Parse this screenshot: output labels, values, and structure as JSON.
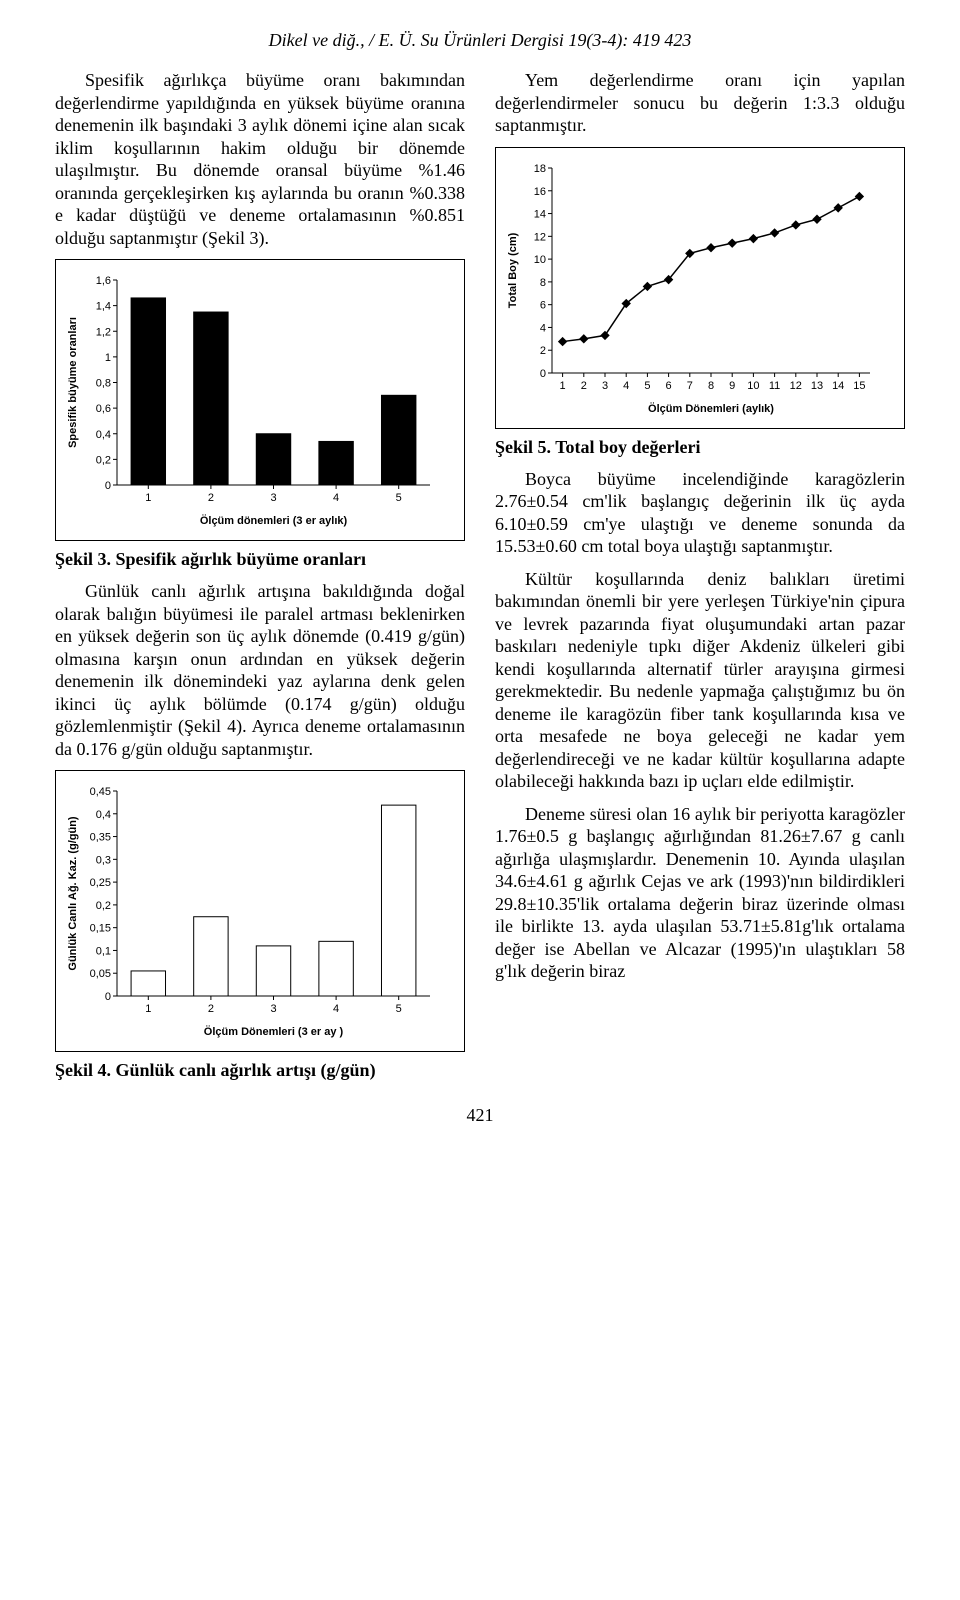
{
  "header": "Dikel ve diğ., / E. Ü. Su Ürünleri Dergisi 19(3-4): 419 423",
  "page_number": "421",
  "left": {
    "p1": "Spesifik ağırlıkça büyüme oranı bakımından değerlendirme yapıldığında en yüksek büyüme oranına denemenin ilk başındaki 3 aylık dönemi içine alan sıcak iklim koşullarının hakim olduğu bir dönemde ulaşılmıştır. Bu dönemde oransal büyüme %1.46 oranında gerçekleşirken kış aylarında bu oranın %0.338 e kadar düştüğü ve deneme ortalamasının %0.851 olduğu saptanmıştır (Şekil 3).",
    "cap3": "Şekil 3. Spesifik ağırlık büyüme oranları",
    "p2": "Günlük canlı ağırlık artışına bakıldığında doğal olarak balığın büyümesi ile paralel artması beklenirken en yüksek değerin son üç aylık dönemde (0.419 g/gün) olmasına karşın onun ardından en yüksek değerin denemenin ilk dönemindeki yaz aylarına denk gelen ikinci üç aylık bölümde (0.174 g/gün) olduğu gözlemlenmiştir (Şekil 4). Ayrıca deneme ortalamasının da 0.176 g/gün olduğu saptanmıştır.",
    "cap4": "Şekil 4. Günlük canlı ağırlık artışı (g/gün)"
  },
  "right": {
    "p1": "Yem değerlendirme oranı için yapılan değerlendirmeler sonucu bu değerin 1:3.3 olduğu saptanmıştır.",
    "cap5": "Şekil 5. Total boy değerleri",
    "p2": "Boyca büyüme incelendiğinde karagözlerin 2.76±0.54 cm'lik başlangıç değerinin ilk üç ayda 6.10±0.59 cm'ye ulaştığı ve deneme sonunda da 15.53±0.60 cm total boya ulaştığı saptanmıştır.",
    "p3": "Kültür koşullarında deniz balıkları üretimi bakımından önemli bir yere yerleşen Türkiye'nin çipura ve levrek pazarında fiyat oluşumundaki artan pazar baskıları nedeniyle tıpkı diğer Akdeniz ülkeleri gibi kendi koşullarında alternatif türler arayışına girmesi gerekmektedir. Bu nedenle yapmağa çalıştığımız bu ön deneme ile karagözün fiber tank koşullarında kısa ve orta mesafede ne boya geleceği ne kadar yem değerlendireceği ve ne kadar kültür koşullarına adapte olabileceği hakkında bazı ip uçları elde edilmiştir.",
    "p4": "Deneme süresi olan 16 aylık bir periyotta karagözler 1.76±0.5 g başlangıç ağırlığından 81.26±7.67 g canlı ağırlığa ulaşmışlardır. Denemenin 10. Ayında ulaşılan 34.6±4.61 g ağırlık Cejas ve ark (1993)'nın bildirdikleri 29.8±10.35'lik ortalama değerin biraz üzerinde olması ile birlikte 13. ayda ulaşılan 53.71±5.81g'lık ortalama değer ise Abellan ve Alcazar (1995)'ın ulaştıkları 58 g'lık değerin biraz"
  },
  "chart3": {
    "type": "bar",
    "ylabel": "Spesifik büyüme oranları",
    "xlabel": "Ölçüm dönemleri (3 er aylık)",
    "categories": [
      "1",
      "2",
      "3",
      "4",
      "5"
    ],
    "values": [
      1.46,
      1.35,
      0.4,
      0.34,
      0.7
    ],
    "yticks": [
      "0",
      "0,2",
      "0,4",
      "0,6",
      "0,8",
      "1",
      "1,2",
      "1,4",
      "1,6"
    ],
    "ymax": 1.6,
    "bar_color": "#000000",
    "axis_color": "#000000",
    "tick_fontsize": 11,
    "label_fontsize": 11
  },
  "chart4": {
    "type": "bar",
    "ylabel": "Günlük Canlı Ağ. Kaz. (g/gün)",
    "xlabel": "Ölçüm Dönemleri (3 er ay )",
    "categories": [
      "1",
      "2",
      "3",
      "4",
      "5"
    ],
    "values": [
      0.055,
      0.174,
      0.11,
      0.12,
      0.419
    ],
    "yticks": [
      "0",
      "0,05",
      "0,1",
      "0,15",
      "0,2",
      "0,25",
      "0,3",
      "0,35",
      "0,4",
      "0,45"
    ],
    "ymax": 0.45,
    "bar_fill": "#ffffff",
    "bar_stroke": "#000000",
    "axis_color": "#000000",
    "tick_fontsize": 11,
    "label_fontsize": 11
  },
  "chart5": {
    "type": "line",
    "ylabel": "Total Boy (cm)",
    "xlabel": "Ölçüm Dönemleri (aylık)",
    "x": [
      1,
      2,
      3,
      4,
      5,
      6,
      7,
      8,
      9,
      10,
      11,
      12,
      13,
      14,
      15
    ],
    "y": [
      2.76,
      3.0,
      3.3,
      6.1,
      7.6,
      8.2,
      10.5,
      11.0,
      11.4,
      11.8,
      12.3,
      13.0,
      13.5,
      14.5,
      15.5
    ],
    "yticks": [
      "0",
      "2",
      "4",
      "6",
      "8",
      "10",
      "12",
      "14",
      "16",
      "18"
    ],
    "ymax": 18,
    "marker": "diamond",
    "line_color": "#000000",
    "axis_color": "#000000",
    "tick_fontsize": 11,
    "label_fontsize": 11
  }
}
